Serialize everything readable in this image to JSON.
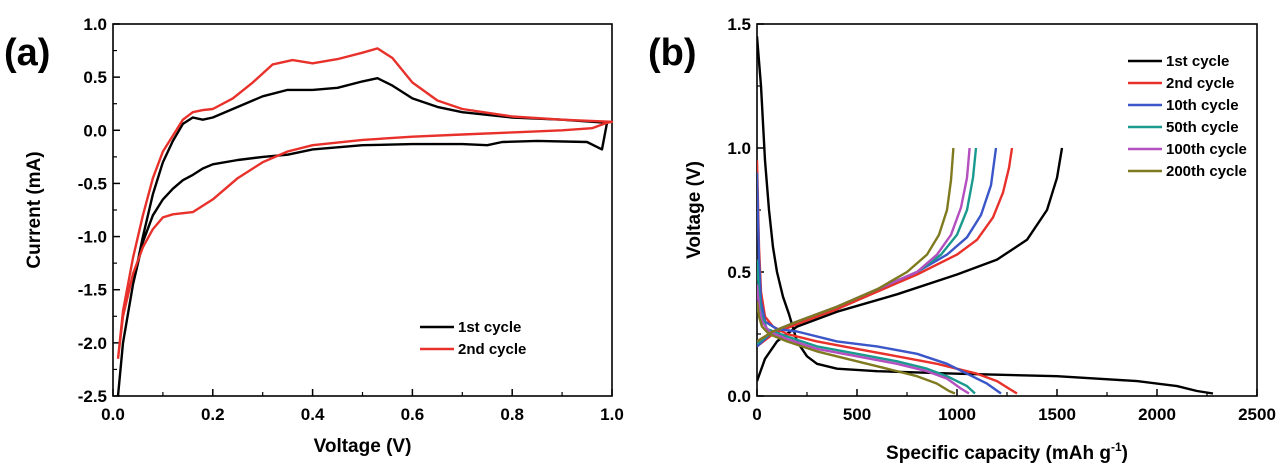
{
  "chart_data": [
    {
      "type": "line",
      "panel_label": "(a)",
      "xlabel": "Voltage (V)",
      "ylabel": "Current (mA)",
      "xlim": [
        0.0,
        1.0
      ],
      "ylim": [
        -2.5,
        1.0
      ],
      "xticks": [
        "0.0",
        "0.2",
        "0.4",
        "0.6",
        "0.8",
        "1.0"
      ],
      "yticks": [
        "-2.5",
        "-2.0",
        "-1.5",
        "-1.0",
        "-0.5",
        "0.0",
        "0.5",
        "1.0"
      ],
      "grid": false,
      "legend_position": "bottom-right",
      "series": [
        {
          "name": "1st cycle",
          "color": "#000000",
          "points": [
            [
              0.01,
              -2.5
            ],
            [
              0.02,
              -2.0
            ],
            [
              0.04,
              -1.45
            ],
            [
              0.06,
              -1.05
            ],
            [
              0.08,
              -0.8
            ],
            [
              0.1,
              -0.65
            ],
            [
              0.12,
              -0.55
            ],
            [
              0.14,
              -0.47
            ],
            [
              0.16,
              -0.42
            ],
            [
              0.18,
              -0.36
            ],
            [
              0.2,
              -0.32
            ],
            [
              0.25,
              -0.28
            ],
            [
              0.3,
              -0.25
            ],
            [
              0.35,
              -0.23
            ],
            [
              0.4,
              -0.18
            ],
            [
              0.5,
              -0.14
            ],
            [
              0.6,
              -0.13
            ],
            [
              0.7,
              -0.13
            ],
            [
              0.75,
              -0.14
            ],
            [
              0.78,
              -0.11
            ],
            [
              0.85,
              -0.1
            ],
            [
              0.95,
              -0.11
            ],
            [
              0.98,
              -0.18
            ],
            [
              0.99,
              0.07
            ],
            [
              0.9,
              0.1
            ],
            [
              0.8,
              0.12
            ],
            [
              0.7,
              0.17
            ],
            [
              0.65,
              0.22
            ],
            [
              0.6,
              0.3
            ],
            [
              0.56,
              0.42
            ],
            [
              0.53,
              0.49
            ],
            [
              0.5,
              0.46
            ],
            [
              0.45,
              0.4
            ],
            [
              0.4,
              0.38
            ],
            [
              0.35,
              0.38
            ],
            [
              0.3,
              0.32
            ],
            [
              0.25,
              0.22
            ],
            [
              0.2,
              0.12
            ],
            [
              0.18,
              0.1
            ],
            [
              0.16,
              0.12
            ],
            [
              0.14,
              0.06
            ],
            [
              0.12,
              -0.1
            ],
            [
              0.1,
              -0.3
            ],
            [
              0.08,
              -0.6
            ],
            [
              0.06,
              -1.0
            ],
            [
              0.04,
              -1.45
            ],
            [
              0.02,
              -2.0
            ],
            [
              0.01,
              -2.5
            ]
          ]
        },
        {
          "name": "2nd cycle",
          "color": "#e8312a",
          "points": [
            [
              0.01,
              -2.15
            ],
            [
              0.02,
              -1.75
            ],
            [
              0.04,
              -1.35
            ],
            [
              0.06,
              -1.1
            ],
            [
              0.08,
              -0.93
            ],
            [
              0.1,
              -0.82
            ],
            [
              0.12,
              -0.79
            ],
            [
              0.16,
              -0.77
            ],
            [
              0.2,
              -0.65
            ],
            [
              0.25,
              -0.45
            ],
            [
              0.3,
              -0.3
            ],
            [
              0.35,
              -0.2
            ],
            [
              0.4,
              -0.14
            ],
            [
              0.5,
              -0.09
            ],
            [
              0.6,
              -0.06
            ],
            [
              0.7,
              -0.04
            ],
            [
              0.8,
              -0.02
            ],
            [
              0.9,
              0.0
            ],
            [
              0.96,
              0.02
            ],
            [
              0.99,
              0.07
            ],
            [
              1.0,
              0.08
            ],
            [
              0.9,
              0.1
            ],
            [
              0.8,
              0.13
            ],
            [
              0.7,
              0.2
            ],
            [
              0.65,
              0.28
            ],
            [
              0.6,
              0.45
            ],
            [
              0.56,
              0.68
            ],
            [
              0.53,
              0.77
            ],
            [
              0.5,
              0.73
            ],
            [
              0.45,
              0.67
            ],
            [
              0.4,
              0.63
            ],
            [
              0.36,
              0.66
            ],
            [
              0.32,
              0.62
            ],
            [
              0.28,
              0.45
            ],
            [
              0.24,
              0.3
            ],
            [
              0.2,
              0.2
            ],
            [
              0.18,
              0.19
            ],
            [
              0.16,
              0.17
            ],
            [
              0.14,
              0.1
            ],
            [
              0.12,
              -0.05
            ],
            [
              0.1,
              -0.2
            ],
            [
              0.08,
              -0.45
            ],
            [
              0.06,
              -0.8
            ],
            [
              0.04,
              -1.2
            ],
            [
              0.02,
              -1.7
            ],
            [
              0.01,
              -2.15
            ]
          ]
        }
      ]
    },
    {
      "type": "line",
      "panel_label": "(b)",
      "xlabel_main": "Specific capacity (mAh g",
      "xlabel_sup": "-1",
      "xlabel_end": ")",
      "ylabel": "Voltage (V)",
      "xlim": [
        0,
        2500
      ],
      "ylim": [
        0.0,
        1.5
      ],
      "xticks": [
        "0",
        "500",
        "1000",
        "1500",
        "2000",
        "2500"
      ],
      "yticks": [
        "0.0",
        "0.5",
        "1.0",
        "1.5"
      ],
      "grid": false,
      "legend_position": "top-right",
      "series": [
        {
          "name": "1st cycle",
          "color": "#000000",
          "points": [
            [
              0,
              1.45
            ],
            [
              20,
              1.25
            ],
            [
              40,
              0.95
            ],
            [
              60,
              0.75
            ],
            [
              80,
              0.6
            ],
            [
              100,
              0.5
            ],
            [
              130,
              0.4
            ],
            [
              160,
              0.33
            ],
            [
              200,
              0.22
            ],
            [
              250,
              0.16
            ],
            [
              300,
              0.13
            ],
            [
              400,
              0.11
            ],
            [
              600,
              0.1
            ],
            [
              1000,
              0.09
            ],
            [
              1500,
              0.08
            ],
            [
              1900,
              0.06
            ],
            [
              2100,
              0.04
            ],
            [
              2200,
              0.02
            ],
            [
              2280,
              0.01
            ],
            [
              null,
              null
            ],
            [
              0,
              0.06
            ],
            [
              40,
              0.15
            ],
            [
              100,
              0.22
            ],
            [
              200,
              0.28
            ],
            [
              400,
              0.34
            ],
            [
              700,
              0.41
            ],
            [
              1000,
              0.49
            ],
            [
              1200,
              0.55
            ],
            [
              1350,
              0.63
            ],
            [
              1450,
              0.75
            ],
            [
              1500,
              0.88
            ],
            [
              1525,
              1.0
            ]
          ]
        },
        {
          "name": "2nd cycle",
          "color": "#e8312a",
          "points": [
            [
              0,
              0.95
            ],
            [
              10,
              0.6
            ],
            [
              20,
              0.42
            ],
            [
              40,
              0.32
            ],
            [
              80,
              0.28
            ],
            [
              150,
              0.25
            ],
            [
              300,
              0.22
            ],
            [
              500,
              0.19
            ],
            [
              700,
              0.16
            ],
            [
              900,
              0.13
            ],
            [
              1100,
              0.09
            ],
            [
              1200,
              0.06
            ],
            [
              1260,
              0.03
            ],
            [
              1300,
              0.01
            ],
            [
              null,
              null
            ],
            [
              0,
              0.2
            ],
            [
              80,
              0.25
            ],
            [
              200,
              0.29
            ],
            [
              400,
              0.35
            ],
            [
              600,
              0.42
            ],
            [
              800,
              0.49
            ],
            [
              1000,
              0.57
            ],
            [
              1100,
              0.63
            ],
            [
              1180,
              0.72
            ],
            [
              1230,
              0.82
            ],
            [
              1260,
              0.92
            ],
            [
              1275,
              1.0
            ]
          ]
        },
        {
          "name": "10th cycle",
          "color": "#3a56c8",
          "points": [
            [
              0,
              0.9
            ],
            [
              10,
              0.55
            ],
            [
              20,
              0.38
            ],
            [
              40,
              0.3
            ],
            [
              100,
              0.27
            ],
            [
              200,
              0.26
            ],
            [
              400,
              0.22
            ],
            [
              600,
              0.2
            ],
            [
              800,
              0.17
            ],
            [
              950,
              0.13
            ],
            [
              1050,
              0.09
            ],
            [
              1150,
              0.05
            ],
            [
              1220,
              0.01
            ],
            [
              null,
              null
            ],
            [
              0,
              0.2
            ],
            [
              80,
              0.26
            ],
            [
              200,
              0.3
            ],
            [
              400,
              0.36
            ],
            [
              600,
              0.43
            ],
            [
              800,
              0.5
            ],
            [
              950,
              0.57
            ],
            [
              1050,
              0.64
            ],
            [
              1120,
              0.73
            ],
            [
              1170,
              0.85
            ],
            [
              1195,
              1.0
            ]
          ]
        },
        {
          "name": "50th cycle",
          "color": "#1a9a8e",
          "points": [
            [
              0,
              0.55
            ],
            [
              10,
              0.42
            ],
            [
              20,
              0.33
            ],
            [
              50,
              0.27
            ],
            [
              150,
              0.24
            ],
            [
              300,
              0.2
            ],
            [
              500,
              0.17
            ],
            [
              700,
              0.14
            ],
            [
              850,
              0.11
            ],
            [
              950,
              0.08
            ],
            [
              1050,
              0.04
            ],
            [
              1090,
              0.01
            ],
            [
              null,
              null
            ],
            [
              0,
              0.21
            ],
            [
              80,
              0.26
            ],
            [
              200,
              0.3
            ],
            [
              400,
              0.36
            ],
            [
              600,
              0.43
            ],
            [
              800,
              0.5
            ],
            [
              920,
              0.57
            ],
            [
              1000,
              0.65
            ],
            [
              1050,
              0.75
            ],
            [
              1080,
              0.88
            ],
            [
              1095,
              1.0
            ]
          ]
        },
        {
          "name": "100th cycle",
          "color": "#b44fc0",
          "points": [
            [
              0,
              0.45
            ],
            [
              10,
              0.36
            ],
            [
              25,
              0.3
            ],
            [
              60,
              0.26
            ],
            [
              150,
              0.23
            ],
            [
              300,
              0.19
            ],
            [
              500,
              0.16
            ],
            [
              700,
              0.13
            ],
            [
              850,
              0.1
            ],
            [
              950,
              0.07
            ],
            [
              1020,
              0.03
            ],
            [
              1060,
              0.01
            ],
            [
              null,
              null
            ],
            [
              0,
              0.22
            ],
            [
              80,
              0.26
            ],
            [
              200,
              0.3
            ],
            [
              400,
              0.36
            ],
            [
              600,
              0.43
            ],
            [
              800,
              0.5
            ],
            [
              900,
              0.57
            ],
            [
              970,
              0.65
            ],
            [
              1020,
              0.76
            ],
            [
              1050,
              0.88
            ],
            [
              1063,
              1.0
            ]
          ]
        },
        {
          "name": "200th cycle",
          "color": "#7f7a1f",
          "points": [
            [
              0,
              0.38
            ],
            [
              10,
              0.32
            ],
            [
              25,
              0.28
            ],
            [
              60,
              0.25
            ],
            [
              150,
              0.22
            ],
            [
              300,
              0.18
            ],
            [
              500,
              0.14
            ],
            [
              650,
              0.11
            ],
            [
              800,
              0.08
            ],
            [
              900,
              0.05
            ],
            [
              960,
              0.02
            ],
            [
              990,
              0.01
            ],
            [
              null,
              null
            ],
            [
              0,
              0.22
            ],
            [
              80,
              0.26
            ],
            [
              200,
              0.3
            ],
            [
              400,
              0.36
            ],
            [
              600,
              0.43
            ],
            [
              750,
              0.5
            ],
            [
              850,
              0.57
            ],
            [
              910,
              0.65
            ],
            [
              950,
              0.75
            ],
            [
              970,
              0.87
            ],
            [
              982,
              1.0
            ]
          ]
        }
      ]
    }
  ]
}
